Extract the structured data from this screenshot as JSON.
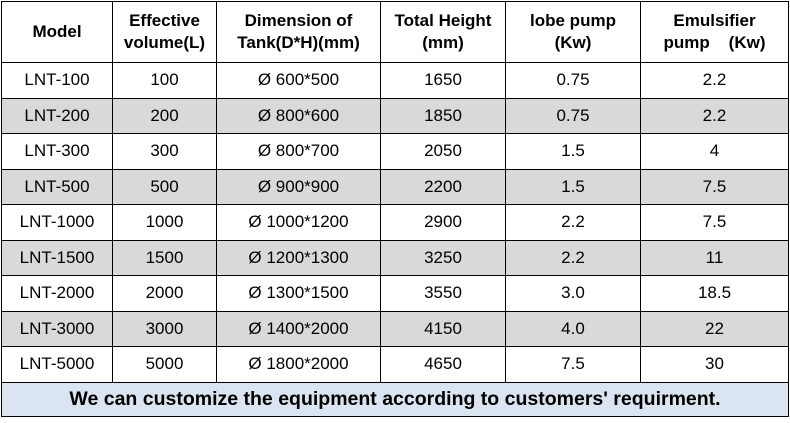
{
  "table": {
    "header": [
      [
        "Model"
      ],
      [
        "Effective",
        "volume(L)"
      ],
      [
        "Dimension of",
        "Tank(D*H)(mm)"
      ],
      [
        "Total Height",
        "(mm)"
      ],
      [
        "lobe pump",
        "(Kw)"
      ],
      [
        "Emulsifier",
        "pump    (Kw)"
      ]
    ],
    "rows": [
      [
        "LNT-100",
        "100",
        "Ø 600*500",
        "1650",
        "0.75",
        "2.2"
      ],
      [
        "LNT-200",
        "200",
        "Ø 800*600",
        "1850",
        "0.75",
        "2.2"
      ],
      [
        "LNT-300",
        "300",
        "Ø 800*700",
        "2050",
        "1.5",
        "4"
      ],
      [
        "LNT-500",
        "500",
        "Ø 900*900",
        "2200",
        "1.5",
        "7.5"
      ],
      [
        "LNT-1000",
        "1000",
        "Ø 1000*1200",
        "2900",
        "2.2",
        "7.5"
      ],
      [
        "LNT-1500",
        "1500",
        "Ø 1200*1300",
        "3250",
        "2.2",
        "11"
      ],
      [
        "LNT-2000",
        "2000",
        "Ø 1300*1500",
        "3550",
        "3.0",
        "18.5"
      ],
      [
        "LNT-3000",
        "3000",
        "Ø 1400*2000",
        "4150",
        "4.0",
        "22"
      ],
      [
        "LNT-5000",
        "5000",
        "Ø 1800*2000",
        "4650",
        "7.5",
        "30"
      ]
    ],
    "footer": "We can customize the equipment according to customers' requirment."
  }
}
